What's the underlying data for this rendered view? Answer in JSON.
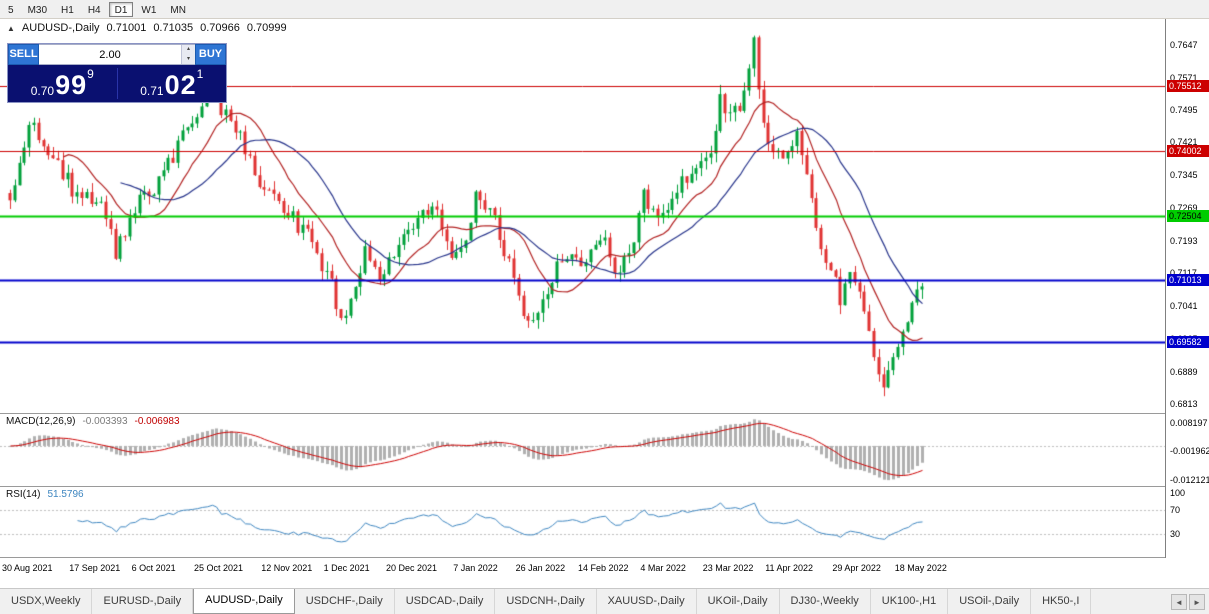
{
  "timeframe_bar": {
    "items": [
      {
        "label": "5",
        "active": false
      },
      {
        "label": "M30",
        "active": false
      },
      {
        "label": "H1",
        "active": false
      },
      {
        "label": "H4",
        "active": false
      },
      {
        "label": "D1",
        "active": true
      },
      {
        "label": "W1",
        "active": false
      },
      {
        "label": "MN",
        "active": false
      }
    ]
  },
  "chart_header": {
    "collapse_icon": "▲",
    "symbol": "AUDUSD-,Daily",
    "open": "0.71001",
    "high": "0.71035",
    "low": "0.70966",
    "close": "0.70999"
  },
  "icons": {
    "spinner_up": "▴",
    "spinner_down": "▾"
  },
  "trade_panel": {
    "sell_label": "SELL",
    "buy_label": "BUY",
    "volume": "2.00",
    "sell_price": {
      "small": "0.70",
      "big": "99",
      "sup": "9"
    },
    "buy_price": {
      "small": "0.71",
      "big": "02",
      "sup": "1"
    }
  },
  "price_scale": {
    "ticks": [
      0.7647,
      0.7571,
      0.7495,
      0.7421,
      0.7345,
      0.7269,
      0.7193,
      0.7117,
      0.7041,
      0.6965,
      0.6889,
      0.6813
    ],
    "tick_labels": [
      "0.7647",
      "0.7571",
      "0.7495",
      "0.7421",
      "0.7345",
      "0.7269",
      "0.7193",
      "0.7117",
      "0.7041",
      "0.6965",
      "0.6889",
      "0.6813"
    ],
    "badges": [
      {
        "label": "0.75512",
        "price": 0.75512,
        "bg": "#cc0000",
        "fg": "#ffffff"
      },
      {
        "label": "0.74002",
        "price": 0.74002,
        "bg": "#cc0000",
        "fg": "#ffffff"
      },
      {
        "label": "0.72504",
        "price": 0.72504,
        "bg": "#00cc00",
        "fg": "#000000"
      },
      {
        "label": "0.71013",
        "price": 0.71013,
        "bg": "#0000cc",
        "fg": "#ffffff"
      },
      {
        "label": "0.69582",
        "price": 0.69582,
        "bg": "#0000cc",
        "fg": "#ffffff"
      }
    ]
  },
  "indicators": {
    "macd": {
      "label": "MACD(12,26,9)",
      "value_main": "-0.003393",
      "value_signal": "-0.006983",
      "scale_labels": [
        0.008197,
        -0.001962,
        -0.012121
      ],
      "scale_texts": [
        "0.008197",
        "-0.001962",
        "-0.012121"
      ]
    },
    "rsi": {
      "label": "RSI(14)",
      "value": "51.5796",
      "scale_labels": [
        100,
        70,
        30
      ],
      "scale_texts": [
        "100",
        "70",
        "30"
      ]
    }
  },
  "date_axis": {
    "labels": [
      {
        "text": "30 Aug 2021",
        "day": 0
      },
      {
        "text": "17 Sep 2021",
        "day": 14
      },
      {
        "text": "6 Oct 2021",
        "day": 27
      },
      {
        "text": "25 Oct 2021",
        "day": 40
      },
      {
        "text": "12 Nov 2021",
        "day": 54
      },
      {
        "text": "1 Dec 2021",
        "day": 67
      },
      {
        "text": "20 Dec 2021",
        "day": 80
      },
      {
        "text": "7 Jan 2022",
        "day": 94
      },
      {
        "text": "26 Jan 2022",
        "day": 107
      },
      {
        "text": "14 Feb 2022",
        "day": 120
      },
      {
        "text": "4 Mar 2022",
        "day": 133
      },
      {
        "text": "23 Mar 2022",
        "day": 146
      },
      {
        "text": "11 Apr 2022",
        "day": 159
      },
      {
        "text": "29 Apr 2022",
        "day": 173
      },
      {
        "text": "18 May 2022",
        "day": 186
      }
    ]
  },
  "tab_bar": {
    "tabs": [
      {
        "label": "USDX,Weekly",
        "active": false
      },
      {
        "label": "EURUSD-,Daily",
        "active": false
      },
      {
        "label": "AUDUSD-,Daily",
        "active": true
      },
      {
        "label": "USDCHF-,Daily",
        "active": false
      },
      {
        "label": "USDCAD-,Daily",
        "active": false
      },
      {
        "label": "USDCNH-,Daily",
        "active": false
      },
      {
        "label": "XAUUSD-,Daily",
        "active": false
      },
      {
        "label": "UKOil-,Daily",
        "active": false
      },
      {
        "label": "DJ30-,Weekly",
        "active": false
      },
      {
        "label": "UK100-,H1",
        "active": false
      },
      {
        "label": "USOil-,Daily",
        "active": false
      },
      {
        "label": "HK50-,I",
        "active": false
      }
    ],
    "left_arrow": "◄",
    "right_arrow": "►"
  },
  "chart_data": {
    "type": "candlestick",
    "symbol": "AUDUSD-",
    "timeframe": "Daily",
    "ohlc_current": {
      "open": 0.71001,
      "high": 0.71035,
      "low": 0.70966,
      "close": 0.70999
    },
    "days": 191,
    "seed": 90210,
    "noise": 0.0045,
    "wick": 0.0022,
    "price_range": [
      0.6795,
      0.7705
    ],
    "anchors": [
      [
        0,
        0.73
      ],
      [
        2,
        0.736
      ],
      [
        4,
        0.7468
      ],
      [
        7,
        0.743
      ],
      [
        10,
        0.7375
      ],
      [
        14,
        0.7288
      ],
      [
        18,
        0.7302
      ],
      [
        22,
        0.7172
      ],
      [
        25,
        0.724
      ],
      [
        27,
        0.7292
      ],
      [
        31,
        0.733
      ],
      [
        36,
        0.7428
      ],
      [
        40,
        0.7498
      ],
      [
        42,
        0.7546
      ],
      [
        45,
        0.748
      ],
      [
        47,
        0.745
      ],
      [
        52,
        0.7332
      ],
      [
        57,
        0.727
      ],
      [
        62,
        0.7206
      ],
      [
        66,
        0.7122
      ],
      [
        69,
        0.7006
      ],
      [
        71,
        0.706
      ],
      [
        74,
        0.7164
      ],
      [
        76,
        0.712
      ],
      [
        78,
        0.7112
      ],
      [
        81,
        0.718
      ],
      [
        83,
        0.7214
      ],
      [
        88,
        0.7272
      ],
      [
        90,
        0.724
      ],
      [
        92,
        0.7166
      ],
      [
        95,
        0.721
      ],
      [
        97,
        0.729
      ],
      [
        100,
        0.7258
      ],
      [
        102,
        0.7214
      ],
      [
        104,
        0.713
      ],
      [
        106,
        0.7062
      ],
      [
        108,
        0.6992
      ],
      [
        111,
        0.706
      ],
      [
        113,
        0.7112
      ],
      [
        116,
        0.7148
      ],
      [
        120,
        0.7136
      ],
      [
        124,
        0.7196
      ],
      [
        127,
        0.7106
      ],
      [
        130,
        0.7205
      ],
      [
        132,
        0.7292
      ],
      [
        134,
        0.726
      ],
      [
        136,
        0.7258
      ],
      [
        138,
        0.7292
      ],
      [
        141,
        0.7345
      ],
      [
        143,
        0.7382
      ],
      [
        146,
        0.7417
      ],
      [
        148,
        0.7512
      ],
      [
        150,
        0.7478
      ],
      [
        152,
        0.7496
      ],
      [
        155,
        0.7655
      ],
      [
        157,
        0.7455
      ],
      [
        159,
        0.7418
      ],
      [
        161,
        0.7398
      ],
      [
        164,
        0.7448
      ],
      [
        166,
        0.733
      ],
      [
        169,
        0.7172
      ],
      [
        171,
        0.7125
      ],
      [
        173,
        0.7062
      ],
      [
        176,
        0.7116
      ],
      [
        178,
        0.704
      ],
      [
        180,
        0.694
      ],
      [
        182,
        0.6838
      ],
      [
        184,
        0.6935
      ],
      [
        186,
        0.6962
      ],
      [
        188,
        0.7035
      ],
      [
        190,
        0.7098
      ]
    ],
    "ma_fast": {
      "period": 12,
      "color": "#b22222"
    },
    "ma_slow": {
      "period": 24,
      "color": "#27348b"
    },
    "hlines": [
      {
        "price": 0.75512,
        "color": "#cc0000",
        "width": 1
      },
      {
        "price": 0.74002,
        "color": "#cc0000",
        "width": 1
      },
      {
        "price": 0.72504,
        "color": "#00cc00",
        "width": 2
      },
      {
        "price": 0.71013,
        "color": "#0000cc",
        "width": 2
      },
      {
        "price": 0.69582,
        "color": "#0000cc",
        "width": 2
      }
    ],
    "colors": {
      "up": "#00a03a",
      "down": "#e03232",
      "macd_hist": "#b0b0b0",
      "macd_signal": "#cc0000",
      "rsi_line": "#3e86c0",
      "level_dash": "#bdbdbd"
    },
    "macd_range": [
      -0.0143,
      0.0114
    ],
    "rsi_range": [
      -10,
      110
    ],
    "macd_params": {
      "fast": 12,
      "slow": 26,
      "signal": 9
    },
    "rsi_params": {
      "period": 14,
      "levels": [
        30,
        70
      ]
    }
  }
}
